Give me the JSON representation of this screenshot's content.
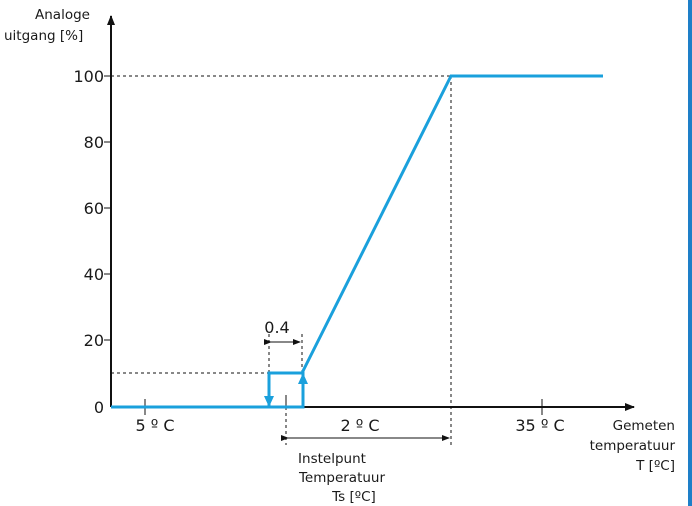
{
  "y_axis": {
    "label_line1": "Analoge",
    "label_line2": "uitgang [%]",
    "ticks": [
      "0",
      "20",
      "40",
      "60",
      "80",
      "100"
    ]
  },
  "x_axis": {
    "label_line1": "Gemeten",
    "label_line2": "temperatuur",
    "label_line3": "T [ºC]",
    "ticks": [
      "5 º C",
      "2 º C",
      "35 º C"
    ]
  },
  "hysteresis_label": "0.4",
  "setpoint": {
    "line1": "Instelpunt",
    "line2": "Temperatuur",
    "line3": "Ts [ºC]"
  },
  "colors": {
    "curve": "#1aa0dc",
    "axis": "#111111"
  },
  "chart_data": {
    "type": "line",
    "series": [
      {
        "x": [
          "min",
          "Ts-0.4",
          "Ts-0.4",
          "Ts",
          "Ts",
          "Ts+2",
          "max"
        ],
        "values": [
          0,
          0,
          10,
          10,
          0,
          100,
          100
        ]
      }
    ],
    "ylim": [
      0,
      100
    ]
  }
}
